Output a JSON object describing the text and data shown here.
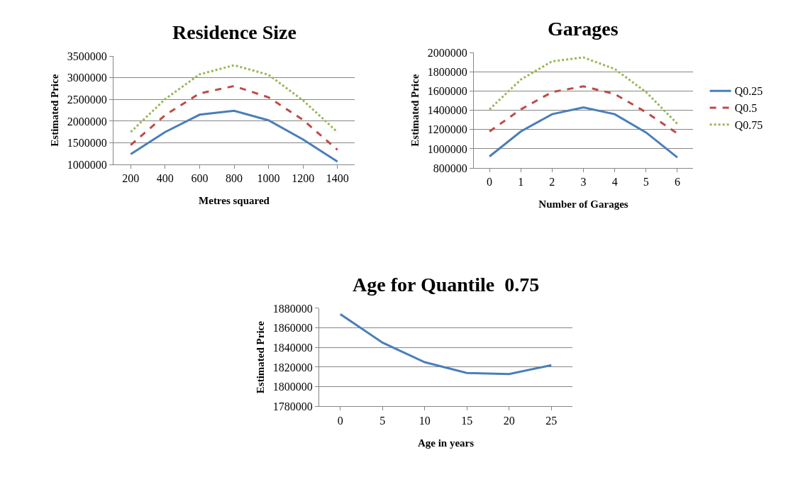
{
  "chart_data": [
    {
      "type": "line",
      "title": "Residence Size",
      "xlabel": "Metres squared",
      "ylabel": "Estimated Price",
      "categories": [
        "200",
        "400",
        "600",
        "800",
        "1000",
        "1200",
        "1400"
      ],
      "ylim": [
        1000000,
        3500000
      ],
      "yticks": [
        1000000,
        1500000,
        2000000,
        2500000,
        3000000,
        3500000
      ],
      "grid": "y",
      "legend": false,
      "series": [
        {
          "color": "#4a7ebb",
          "line_style": "solid",
          "values": [
            1240000,
            1750000,
            2150000,
            2240000,
            2020000,
            1580000,
            1070000
          ]
        },
        {
          "color": "#be4b48",
          "line_style": "dashed",
          "values": [
            1450000,
            2140000,
            2640000,
            2810000,
            2550000,
            2030000,
            1340000
          ]
        },
        {
          "color": "#98b954",
          "line_style": "dotted",
          "values": [
            1750000,
            2510000,
            3080000,
            3290000,
            3070000,
            2480000,
            1750000
          ]
        }
      ]
    },
    {
      "type": "line",
      "title": "Garages",
      "xlabel": "Number of Garages",
      "ylabel": "Estimated Price",
      "categories": [
        "0",
        "1",
        "2",
        "3",
        "4",
        "5",
        "6"
      ],
      "ylim": [
        800000,
        2000000
      ],
      "yticks": [
        800000,
        1000000,
        1200000,
        1400000,
        1600000,
        1800000,
        2000000
      ],
      "grid": "y",
      "legend": "right",
      "series": [
        {
          "name": "Q0.25",
          "color": "#4a7ebb",
          "line_style": "solid",
          "values": [
            920000,
            1180000,
            1360000,
            1430000,
            1360000,
            1170000,
            910000
          ]
        },
        {
          "name": "Q0.5",
          "color": "#be4b48",
          "line_style": "dashed",
          "values": [
            1180000,
            1410000,
            1590000,
            1650000,
            1570000,
            1380000,
            1160000
          ]
        },
        {
          "name": "Q0.75",
          "color": "#98b954",
          "line_style": "dotted",
          "values": [
            1410000,
            1720000,
            1910000,
            1950000,
            1830000,
            1590000,
            1260000
          ]
        }
      ]
    },
    {
      "type": "line",
      "title": "Age for Quantile  0.75",
      "xlabel": "Age in years",
      "ylabel": "Estimated Price",
      "categories": [
        "0",
        "5",
        "10",
        "15",
        "20",
        "25"
      ],
      "ylim": [
        1780000,
        1880000
      ],
      "yticks": [
        1780000,
        1800000,
        1820000,
        1840000,
        1860000,
        1880000
      ],
      "grid": "y",
      "legend": false,
      "series": [
        {
          "color": "#4a7ebb",
          "line_style": "solid",
          "values": [
            1874000,
            1845000,
            1825000,
            1814000,
            1813000,
            1822000
          ]
        }
      ]
    }
  ]
}
